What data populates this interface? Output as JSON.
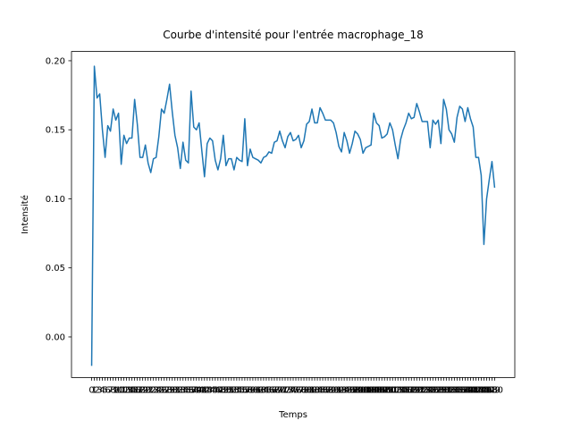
{
  "chart_data": {
    "type": "line",
    "title": "Courbe d'intensité pour l'entrée macrophage_18",
    "x_label": "Temps",
    "y_label": "Intensité",
    "color": "#1f77b4",
    "categories": [
      "0",
      "1",
      "2",
      "3",
      "4",
      "5",
      "6",
      "7",
      "8",
      "9",
      "10",
      "11",
      "12",
      "13",
      "14",
      "15",
      "16",
      "17",
      "18",
      "19",
      "20",
      "21",
      "22",
      "23",
      "24",
      "25",
      "26",
      "27",
      "28",
      "29",
      "30",
      "31",
      "32",
      "33",
      "34",
      "35",
      "36",
      "37",
      "38",
      "39",
      "40",
      "41",
      "42",
      "43",
      "44",
      "45",
      "46",
      "47",
      "48",
      "49",
      "50",
      "51",
      "52",
      "53",
      "54",
      "55",
      "56",
      "57",
      "58",
      "59",
      "60",
      "61",
      "62",
      "63",
      "64",
      "65",
      "66",
      "67",
      "68",
      "69",
      "70",
      "71",
      "72",
      "73",
      "74",
      "75",
      "76",
      "77",
      "78",
      "79",
      "80",
      "81",
      "82",
      "83",
      "84",
      "85",
      "86",
      "87",
      "88",
      "89",
      "90",
      "91",
      "92",
      "93",
      "94",
      "95",
      "96",
      "97",
      "98",
      "99",
      "100",
      "101",
      "102",
      "103",
      "104",
      "105",
      "106",
      "107",
      "108",
      "109",
      "110",
      "111",
      "112",
      "113",
      "114",
      "115",
      "116",
      "117",
      "118",
      "119",
      "120",
      "121",
      "122",
      "123",
      "124",
      "125",
      "126",
      "127",
      "128",
      "129",
      "130",
      "131",
      "132",
      "133",
      "134",
      "135",
      "136",
      "137",
      "138",
      "139",
      "140",
      "141",
      "142",
      "143",
      "144",
      "145",
      "146",
      "147",
      "148",
      "149",
      "150"
    ],
    "values": [
      -0.021,
      0.196,
      0.173,
      0.176,
      0.15,
      0.13,
      0.153,
      0.149,
      0.165,
      0.157,
      0.162,
      0.125,
      0.146,
      0.14,
      0.144,
      0.144,
      0.172,
      0.154,
      0.13,
      0.13,
      0.139,
      0.126,
      0.119,
      0.129,
      0.13,
      0.145,
      0.165,
      0.162,
      0.172,
      0.183,
      0.163,
      0.146,
      0.137,
      0.122,
      0.141,
      0.128,
      0.126,
      0.178,
      0.152,
      0.15,
      0.155,
      0.135,
      0.116,
      0.14,
      0.144,
      0.142,
      0.128,
      0.121,
      0.129,
      0.146,
      0.124,
      0.129,
      0.129,
      0.121,
      0.13,
      0.128,
      0.127,
      0.158,
      0.124,
      0.136,
      0.13,
      0.129,
      0.128,
      0.126,
      0.13,
      0.131,
      0.134,
      0.133,
      0.141,
      0.142,
      0.149,
      0.142,
      0.137,
      0.145,
      0.148,
      0.142,
      0.143,
      0.146,
      0.137,
      0.142,
      0.154,
      0.156,
      0.165,
      0.155,
      0.155,
      0.166,
      0.162,
      0.157,
      0.157,
      0.157,
      0.155,
      0.148,
      0.138,
      0.134,
      0.148,
      0.142,
      0.133,
      0.14,
      0.149,
      0.147,
      0.143,
      0.133,
      0.137,
      0.138,
      0.139,
      0.162,
      0.155,
      0.153,
      0.144,
      0.145,
      0.147,
      0.155,
      0.15,
      0.139,
      0.129,
      0.143,
      0.15,
      0.155,
      0.162,
      0.158,
      0.159,
      0.169,
      0.163,
      0.156,
      0.156,
      0.156,
      0.137,
      0.157,
      0.154,
      0.157,
      0.14,
      0.172,
      0.165,
      0.15,
      0.147,
      0.141,
      0.159,
      0.167,
      0.165,
      0.156,
      0.166,
      0.158,
      0.152,
      0.13,
      0.13,
      0.117,
      0.067,
      0.1,
      0.114,
      0.127,
      0.108
    ],
    "ylim": [
      -0.0294,
      0.2067
    ],
    "yticks": [
      {
        "value": 0,
        "label": "0.00"
      },
      {
        "value": 0.05,
        "label": "0.05"
      },
      {
        "value": 0.1,
        "label": "0.10"
      },
      {
        "value": 0.15,
        "label": "0.15"
      },
      {
        "value": 0.2,
        "label": "0.20"
      }
    ]
  }
}
